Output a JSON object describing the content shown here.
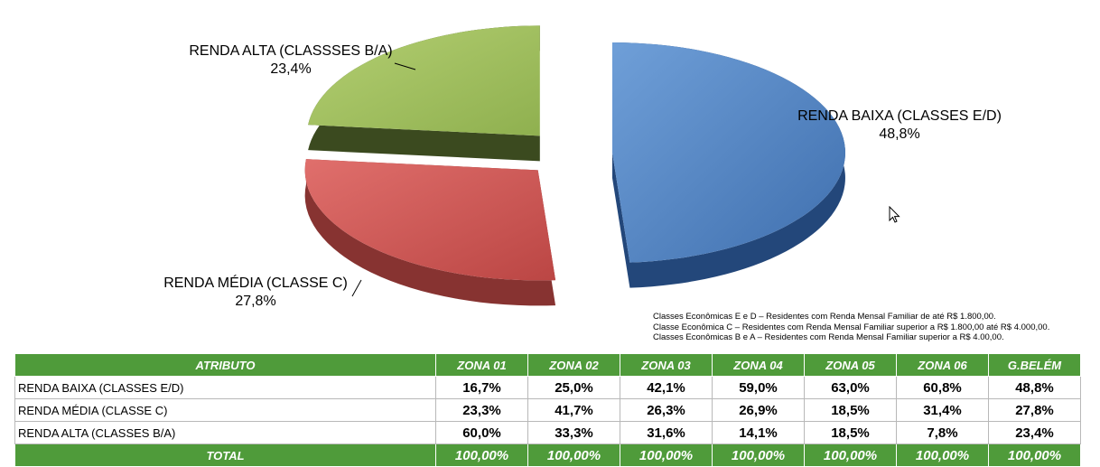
{
  "chart_data": {
    "type": "pie",
    "style": "3d-exploded",
    "slices": [
      {
        "name": "RENDA BAIXA (CLASSES E/D)",
        "value": 48.8,
        "value_label": "48,8%",
        "color": "#4a7ec0"
      },
      {
        "name": "RENDA MÉDIA (CLASSE C)",
        "value": 27.8,
        "value_label": "27,8%",
        "color": "#c9504f"
      },
      {
        "name": "RENDA ALTA (CLASSSES B/A)",
        "value": 23.4,
        "value_label": "23,4%",
        "color": "#9aba58"
      }
    ]
  },
  "notes": [
    "Classes Econômicas E e D – Residentes com Renda Mensal Familiar de até R$ 1.800,00.",
    "Classe Econômica C – Residentes com Renda Mensal Familiar superior a R$ 1.800,00 até R$ 4.000,00.",
    "Classes Econômicas  B e A – Residentes com Renda Mensal Familiar superior a  R$ 4.00,00."
  ],
  "table": {
    "headers": [
      "ATRIBUTO",
      "ZONA 01",
      "ZONA 02",
      "ZONA 03",
      "ZONA 04",
      "ZONA 05",
      "ZONA 06",
      "G.BELÉM"
    ],
    "rows": [
      {
        "label": "RENDA BAIXA (CLASSES E/D)",
        "values": [
          "16,7%",
          "25,0%",
          "42,1%",
          "59,0%",
          "63,0%",
          "60,8%",
          "48,8%"
        ]
      },
      {
        "label": "RENDA MÉDIA (CLASSE C)",
        "values": [
          "23,3%",
          "41,7%",
          "26,3%",
          "26,9%",
          "18,5%",
          "31,4%",
          "27,8%"
        ]
      },
      {
        "label": "RENDA ALTA (CLASSES B/A)",
        "values": [
          "60,0%",
          "33,3%",
          "31,6%",
          "14,1%",
          "18,5%",
          "7,8%",
          "23,4%"
        ]
      }
    ],
    "total": {
      "label": "TOTAL",
      "values": [
        "100,00%",
        "100,00%",
        "100,00%",
        "100,00%",
        "100,00%",
        "100,00%",
        "100,00%"
      ]
    }
  }
}
